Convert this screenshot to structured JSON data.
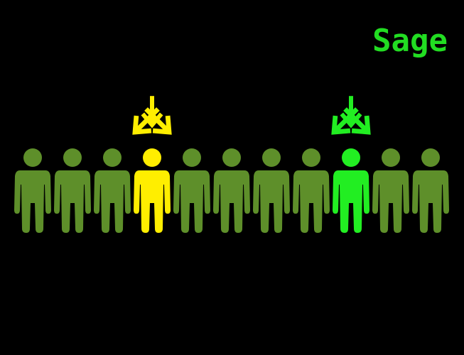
{
  "logo": {
    "text": "Sage",
    "color": "#22dd22"
  },
  "colors": {
    "background": "#000000",
    "crowd": "#5e8f2a",
    "highlight_yellow": "#ffee00",
    "highlight_green": "#22ee22"
  },
  "crowd": {
    "figures": [
      {
        "name": "person-figure-1",
        "state": "normal"
      },
      {
        "name": "person-figure-2",
        "state": "normal"
      },
      {
        "name": "person-figure-3",
        "state": "normal"
      },
      {
        "name": "person-figure-4",
        "state": "highlight_yellow"
      },
      {
        "name": "person-figure-5",
        "state": "normal"
      },
      {
        "name": "person-figure-6",
        "state": "normal"
      },
      {
        "name": "person-figure-7",
        "state": "normal"
      },
      {
        "name": "person-figure-8",
        "state": "normal"
      },
      {
        "name": "person-figure-9",
        "state": "highlight_green"
      },
      {
        "name": "person-figure-10",
        "state": "normal"
      },
      {
        "name": "person-figure-11",
        "state": "normal"
      }
    ]
  },
  "pointers": [
    {
      "target": 4,
      "color_key": "highlight_yellow"
    },
    {
      "target": 9,
      "color_key": "highlight_green"
    }
  ]
}
